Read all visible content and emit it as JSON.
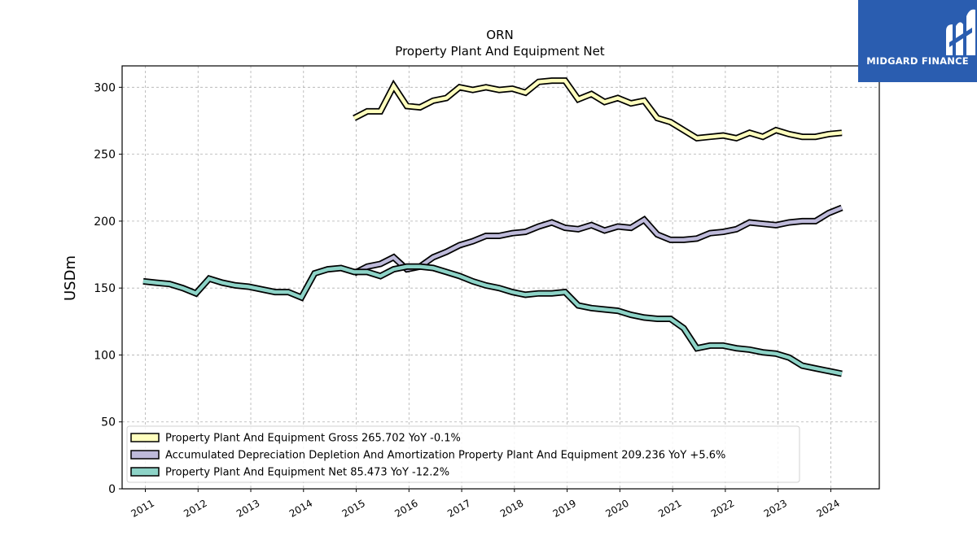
{
  "chart_data": {
    "type": "line",
    "title": "ORN",
    "subtitle": "Property Plant And Equipment Net",
    "xlabel": "",
    "ylabel": "USDm",
    "xlim": [
      2010.56,
      2024.92
    ],
    "ylim": [
      0,
      316
    ],
    "yticks": [
      0,
      50,
      100,
      150,
      200,
      250,
      300
    ],
    "xticks": [
      "2011",
      "2012",
      "2013",
      "2014",
      "2015",
      "2016",
      "2017",
      "2018",
      "2019",
      "2020",
      "2021",
      "2022",
      "2023",
      "2024"
    ],
    "grid": true,
    "legend_position": "lower-left",
    "series": [
      {
        "name": "Property Plant And Equipment Gross",
        "legend_label": "Property Plant And Equipment Gross  265.702 YoY -0.1%",
        "color": "#ffffbe",
        "x": [
          2014.96,
          2015.21,
          2015.46,
          2015.71,
          2015.96,
          2016.21,
          2016.46,
          2016.71,
          2016.96,
          2017.21,
          2017.46,
          2017.71,
          2017.96,
          2018.21,
          2018.46,
          2018.71,
          2018.96,
          2019.21,
          2019.46,
          2019.71,
          2019.96,
          2020.21,
          2020.46,
          2020.71,
          2020.96,
          2021.21,
          2021.46,
          2021.71,
          2021.96,
          2022.21,
          2022.46,
          2022.71,
          2022.96,
          2023.21,
          2023.46,
          2023.71,
          2023.96,
          2024.21
        ],
        "values": [
          277,
          282,
          282,
          301,
          286,
          285,
          290,
          292,
          300,
          298,
          300,
          298,
          299,
          296,
          304,
          305,
          305,
          291,
          295,
          289,
          292,
          288,
          290,
          277,
          274,
          268,
          262,
          263,
          264,
          262,
          266,
          263,
          268,
          265,
          263,
          263,
          265,
          266
        ]
      },
      {
        "name": "Accumulated Depreciation Depletion And Amortization Property Plant And Equipment",
        "legend_label": "Accumulated Depreciation Depletion And Amortization Property Plant And Equipment  209.236 YoY +5.6%",
        "color": "#bebada",
        "x": [
          2014.96,
          2015.21,
          2015.46,
          2015.71,
          2015.96,
          2016.21,
          2016.46,
          2016.71,
          2016.96,
          2017.21,
          2017.46,
          2017.71,
          2017.96,
          2018.21,
          2018.46,
          2018.71,
          2018.96,
          2019.21,
          2019.46,
          2019.71,
          2019.96,
          2020.21,
          2020.46,
          2020.71,
          2020.96,
          2021.21,
          2021.46,
          2021.71,
          2021.96,
          2022.21,
          2022.46,
          2022.71,
          2022.96,
          2023.21,
          2023.46,
          2023.71,
          2023.96,
          2024.21
        ],
        "values": [
          161,
          166,
          168,
          173,
          164,
          166,
          173,
          177,
          182,
          185,
          189,
          189,
          191,
          192,
          196,
          199,
          195,
          194,
          197,
          193,
          196,
          195,
          201,
          190,
          186,
          186,
          187,
          191,
          192,
          194,
          199,
          198,
          197,
          199,
          200,
          200,
          206,
          210
        ]
      },
      {
        "name": "Property Plant And Equipment Net",
        "legend_label": "Property Plant And Equipment Net  85.473 YoY -12.2%",
        "color": "#8dd3c7",
        "x": [
          2010.96,
          2011.21,
          2011.46,
          2011.71,
          2011.96,
          2012.21,
          2012.46,
          2012.71,
          2012.96,
          2013.21,
          2013.46,
          2013.71,
          2013.96,
          2014.21,
          2014.46,
          2014.71,
          2014.96,
          2015.21,
          2015.46,
          2015.71,
          2015.96,
          2016.21,
          2016.46,
          2016.71,
          2016.96,
          2017.21,
          2017.46,
          2017.71,
          2017.96,
          2018.21,
          2018.46,
          2018.71,
          2018.96,
          2019.21,
          2019.46,
          2019.71,
          2019.96,
          2020.21,
          2020.46,
          2020.71,
          2020.96,
          2021.21,
          2021.46,
          2021.71,
          2021.96,
          2022.21,
          2022.46,
          2022.71,
          2022.96,
          2023.21,
          2023.46,
          2023.71,
          2023.96,
          2024.21
        ],
        "values": [
          155,
          154,
          153,
          150,
          146,
          157,
          154,
          152,
          151,
          149,
          147,
          147,
          143,
          161,
          164,
          165,
          162,
          162,
          159,
          164,
          166,
          166,
          165,
          162,
          159,
          155,
          152,
          150,
          147,
          145,
          146,
          146,
          147,
          137,
          135,
          134,
          133,
          130,
          128,
          127,
          127,
          120,
          105,
          107,
          107,
          105,
          104,
          102,
          101,
          98,
          92,
          90,
          88,
          86
        ]
      }
    ]
  },
  "logo": {
    "text": "MIDGARD FINANCE",
    "color": "#2a5db0"
  }
}
